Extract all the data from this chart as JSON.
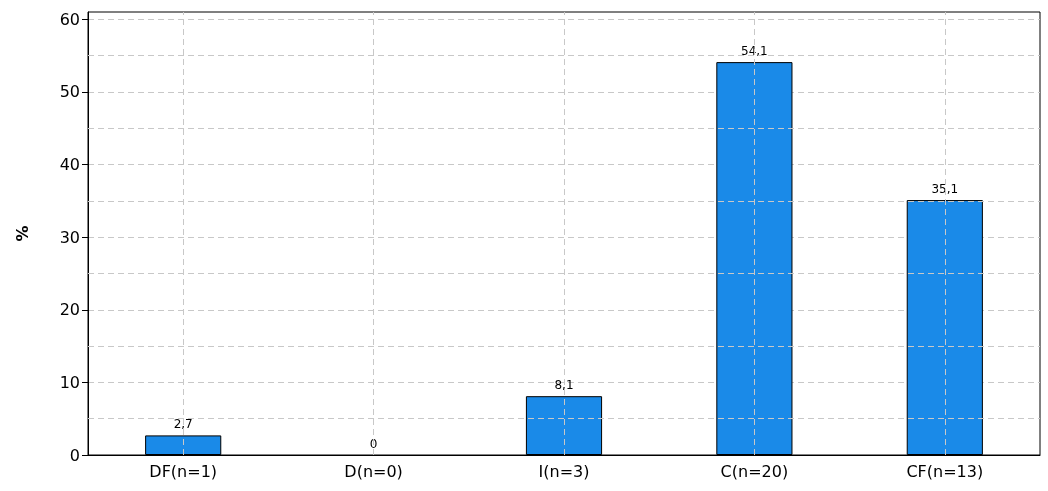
{
  "chart_data": {
    "type": "bar",
    "ylabel": "%",
    "categories": [
      "DF(n=1)",
      "D(n=0)",
      "I(n=3)",
      "C(n=20)",
      "CF(n=13)"
    ],
    "values": [
      2.7,
      0,
      8.1,
      54.1,
      35.1
    ],
    "value_labels": [
      "2,7",
      "0",
      "8,1",
      "54,1",
      "35,1"
    ],
    "color": "#1a8ae8",
    "ylim": [
      0,
      61
    ],
    "yticks": [
      0,
      {
        "value": 5,
        "label": null
      },
      10,
      {
        "value": 15,
        "label": null
      },
      20,
      {
        "value": 25,
        "label": null
      },
      30,
      {
        "value": 35,
        "label": null
      },
      40,
      {
        "value": 45,
        "label": null
      },
      50,
      {
        "value": 55,
        "label": null
      },
      60
    ],
    "grid": true
  }
}
